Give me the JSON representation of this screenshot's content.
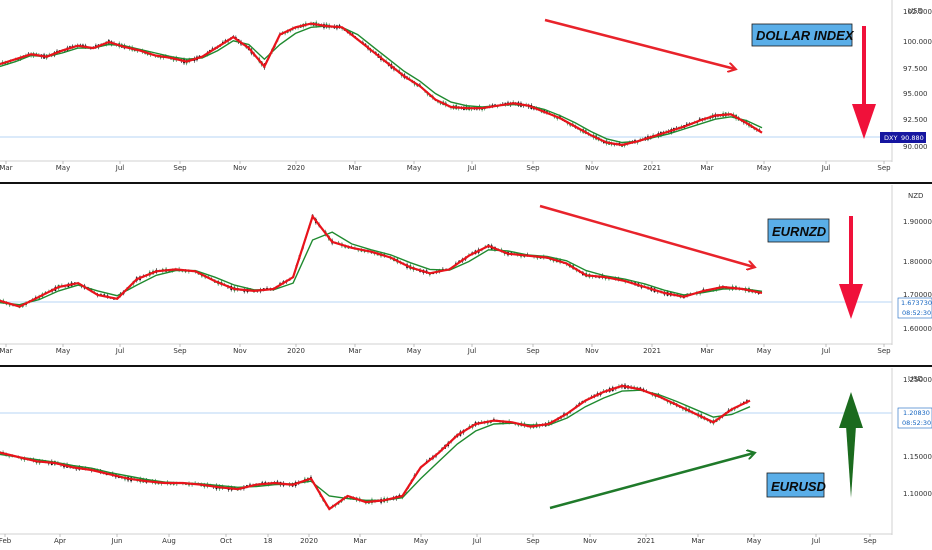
{
  "chart_data": [
    {
      "type": "line",
      "title": "DOLLAR INDEX",
      "currency": "USD",
      "symbol": "DXY",
      "last_price": "90.880",
      "ylim": [
        89.3,
        101.7
      ],
      "yticks": [
        "100.000",
        "97.500",
        "95.000",
        "92.500",
        "90.000"
      ],
      "top_tick": "102.500",
      "xticks": [
        "Mar",
        "May",
        "Jul",
        "Sep",
        "Nov",
        "2020",
        "Mar",
        "May",
        "Jul",
        "Sep",
        "Nov",
        "2021",
        "Mar",
        "May",
        "Jul",
        "Sep"
      ],
      "series": [
        {
          "values": [
            96.8,
            97.2,
            97.6,
            97.4,
            97.9,
            98.3,
            98.1,
            98.6,
            98.2,
            97.9,
            97.5,
            97.3,
            97.0,
            97.4,
            98.2,
            99.0,
            98.1,
            96.6,
            99.2,
            99.8,
            100.1,
            99.9,
            99.8,
            98.8,
            97.8,
            96.8,
            95.8,
            95.0,
            93.9,
            93.3,
            93.2,
            93.2,
            93.4,
            93.6,
            93.4,
            92.9,
            92.4,
            91.7,
            91.0,
            90.4,
            90.2,
            90.5,
            90.9,
            91.3,
            91.7,
            92.2,
            92.6,
            92.7,
            92.0,
            91.2
          ]
        },
        {
          "values": [
            96.6,
            97.0,
            97.5,
            97.4,
            97.7,
            98.1,
            98.1,
            98.4,
            98.3,
            98.0,
            97.7,
            97.4,
            97.2,
            97.3,
            97.9,
            98.7,
            98.4,
            97.2,
            98.4,
            99.3,
            99.8,
            99.9,
            99.8,
            99.2,
            98.2,
            97.2,
            96.2,
            95.4,
            94.4,
            93.7,
            93.4,
            93.3,
            93.4,
            93.5,
            93.4,
            93.1,
            92.6,
            92.0,
            91.3,
            90.7,
            90.4,
            90.5,
            90.8,
            91.1,
            91.5,
            91.9,
            92.3,
            92.5,
            92.2,
            91.6
          ]
        }
      ],
      "arrow_down": true
    },
    {
      "type": "line",
      "title": "EURNZD",
      "currency": "NZD",
      "last_price": "1.673730",
      "countdown": "08:52:30",
      "ylim": [
        1.56,
        1.94
      ],
      "yticks": [
        "1.900000",
        "1.800000",
        "1.700000",
        "1.600000"
      ],
      "xticks": [
        "Mar",
        "May",
        "Jul",
        "Sep",
        "Nov",
        "2020",
        "Mar",
        "May",
        "Jul",
        "Sep",
        "Nov",
        "2021",
        "Mar",
        "May",
        "Jul",
        "Sep"
      ],
      "series": [
        {
          "values": [
            1.655,
            1.64,
            1.665,
            1.69,
            1.7,
            1.67,
            1.66,
            1.71,
            1.73,
            1.735,
            1.73,
            1.705,
            1.685,
            1.68,
            1.685,
            1.715,
            1.87,
            1.805,
            1.79,
            1.78,
            1.765,
            1.74,
            1.725,
            1.735,
            1.77,
            1.795,
            1.775,
            1.77,
            1.765,
            1.75,
            1.72,
            1.715,
            1.705,
            1.69,
            1.675,
            1.665,
            1.68,
            1.69,
            1.685,
            1.675
          ]
        },
        {
          "values": [
            1.65,
            1.645,
            1.658,
            1.68,
            1.695,
            1.68,
            1.668,
            1.695,
            1.72,
            1.732,
            1.732,
            1.715,
            1.695,
            1.683,
            1.683,
            1.7,
            1.81,
            1.83,
            1.8,
            1.785,
            1.772,
            1.752,
            1.735,
            1.733,
            1.755,
            1.785,
            1.782,
            1.772,
            1.768,
            1.757,
            1.732,
            1.718,
            1.71,
            1.698,
            1.682,
            1.67,
            1.676,
            1.685,
            1.686,
            1.679
          ]
        }
      ],
      "arrow_down": true
    },
    {
      "type": "line",
      "title": "EURUSD",
      "currency": "USD",
      "last_price": "1.20830",
      "countdown": "08:52:30",
      "ylim": [
        1.065,
        1.238
      ],
      "yticks": [
        "1.15000",
        "1.10000"
      ],
      "top_tick": "1.25000",
      "xticks": [
        "Feb",
        "Apr",
        "Jun",
        "Aug",
        "Oct",
        "18",
        "2020",
        "Mar",
        "May",
        "Jul",
        "Sep",
        "Nov",
        "2021",
        "Mar",
        "May",
        "Jul",
        "Sep"
      ],
      "series": [
        {
          "values": [
            1.145,
            1.14,
            1.135,
            1.133,
            1.128,
            1.125,
            1.12,
            1.115,
            1.112,
            1.11,
            1.11,
            1.108,
            1.105,
            1.103,
            1.108,
            1.11,
            1.108,
            1.115,
            1.08,
            1.095,
            1.088,
            1.09,
            1.095,
            1.128,
            1.145,
            1.165,
            1.178,
            1.182,
            1.18,
            1.175,
            1.178,
            1.19,
            1.205,
            1.215,
            1.222,
            1.218,
            1.21,
            1.2,
            1.19,
            1.18,
            1.195,
            1.205
          ]
        },
        {
          "values": [
            1.143,
            1.14,
            1.137,
            1.134,
            1.13,
            1.127,
            1.122,
            1.118,
            1.114,
            1.111,
            1.11,
            1.109,
            1.107,
            1.105,
            1.106,
            1.108,
            1.109,
            1.112,
            1.095,
            1.092,
            1.09,
            1.09,
            1.093,
            1.115,
            1.135,
            1.155,
            1.17,
            1.178,
            1.179,
            1.177,
            1.177,
            1.185,
            1.198,
            1.208,
            1.216,
            1.217,
            1.212,
            1.204,
            1.195,
            1.186,
            1.189,
            1.198
          ]
        }
      ],
      "arrow_up": true
    }
  ],
  "colors": {
    "ema_fast": "#e8131b",
    "ema_slow": "#1f8a2f",
    "candle_up": "#1d7a3a",
    "candle_down": "#111111",
    "label_bg": "#5aaee8",
    "arrow_red": "#f0113a",
    "arrow_green": "#1b6b1e",
    "trend_red": "#e8232b",
    "trend_green": "#1f7a2a",
    "dxy_tag": "#1616a0",
    "price_line": "#9fc9f0"
  }
}
